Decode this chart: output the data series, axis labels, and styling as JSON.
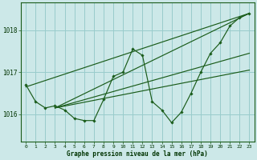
{
  "title": "Graphe pression niveau de la mer (hPa)",
  "bg_color": "#cce8e8",
  "grid_color": "#99cccc",
  "line_color": "#1a5c1a",
  "xlim": [
    -0.5,
    23.5
  ],
  "ylim": [
    1015.35,
    1018.65
  ],
  "yticks": [
    1016,
    1017,
    1018
  ],
  "xticks": [
    0,
    1,
    2,
    3,
    4,
    5,
    6,
    7,
    8,
    9,
    10,
    11,
    12,
    13,
    14,
    15,
    16,
    17,
    18,
    19,
    20,
    21,
    22,
    23
  ],
  "main_series": [
    1016.7,
    1016.3,
    1016.15,
    1016.2,
    1016.1,
    1015.9,
    1015.85,
    1015.85,
    1016.35,
    1016.9,
    1017.0,
    1017.55,
    1017.4,
    1016.3,
    1016.1,
    1015.8,
    1016.05,
    1016.5,
    1017.0,
    1017.45,
    1017.7,
    1018.1,
    1018.3,
    1018.4
  ],
  "trend_lines": [
    {
      "x0": 0,
      "y0": 1016.65,
      "x1": 23,
      "y1": 1018.4
    },
    {
      "x0": 3,
      "y0": 1016.15,
      "x1": 23,
      "y1": 1018.4
    },
    {
      "x0": 3,
      "y0": 1016.15,
      "x1": 23,
      "y1": 1017.45
    },
    {
      "x0": 3,
      "y0": 1016.15,
      "x1": 23,
      "y1": 1017.05
    }
  ]
}
